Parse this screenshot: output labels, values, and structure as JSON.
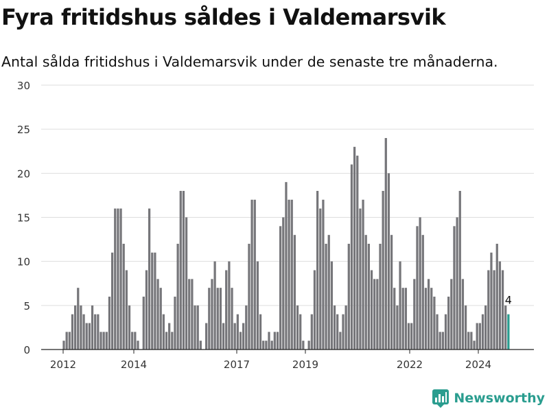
{
  "header": {
    "title": "Fyra fritidshus såldes i Valdemarsvik",
    "subtitle": "Antal sålda fritidshus i Valdemarsvik under de senaste tre månaderna."
  },
  "brand": {
    "name": "Newsworthy",
    "icon": "newsworthy-logo-icon",
    "color": "#2a9d8f"
  },
  "chart_data": {
    "type": "bar",
    "title": "Fyra fritidshus såldes i Valdemarsvik",
    "subtitle": "Antal sålda fritidshus i Valdemarsvik under de senaste tre månaderna.",
    "ylim": [
      0,
      30
    ],
    "yticks": [
      0,
      5,
      10,
      15,
      20,
      25,
      30
    ],
    "xticks": [
      "2012",
      "2014",
      "2017",
      "2019",
      "2022",
      "2024"
    ],
    "grid": true,
    "bar_color": "#76767a",
    "highlight_color": "#2a9d8f",
    "highlight_label": "4",
    "series": [
      {
        "values": [
          1,
          2,
          2,
          4,
          5,
          7,
          5,
          4,
          3,
          3,
          5,
          4,
          4,
          2,
          2,
          2,
          6,
          11,
          16,
          16,
          16,
          12,
          9,
          5,
          2,
          2,
          1,
          0,
          6,
          9,
          16,
          11,
          11,
          8,
          7,
          4,
          2,
          3,
          2,
          6,
          12,
          18,
          18,
          15,
          8,
          8,
          5,
          5,
          1,
          0,
          3,
          7,
          8,
          10,
          7,
          7,
          3,
          9,
          10,
          7,
          3,
          4,
          2,
          3,
          5,
          12,
          17,
          17,
          10,
          4,
          1,
          1,
          2,
          1,
          2,
          2,
          14,
          15,
          19,
          17,
          17,
          13,
          5,
          4,
          1,
          0,
          1,
          4,
          9,
          18,
          16,
          17,
          12,
          13,
          10,
          5,
          4,
          2,
          4,
          5,
          12,
          21,
          23,
          22,
          16,
          17,
          13,
          12,
          9,
          8,
          8,
          12,
          18,
          24,
          20,
          13,
          7,
          5,
          10,
          7,
          7,
          3,
          3,
          8,
          14,
          15,
          13,
          7,
          8,
          7,
          6,
          4,
          2,
          2,
          4,
          6,
          8,
          14,
          15,
          18,
          8,
          5,
          2,
          2,
          1,
          3,
          3,
          4,
          5,
          9,
          11,
          9,
          12,
          10,
          9,
          5,
          4
        ]
      }
    ]
  }
}
